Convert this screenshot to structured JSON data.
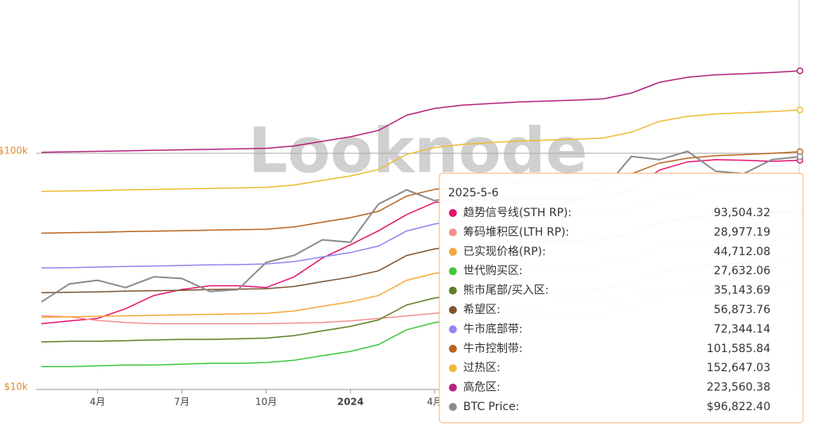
{
  "chart_data": {
    "type": "line",
    "watermark": "Looknode",
    "categories": [
      null,
      null,
      "4月",
      null,
      null,
      "7月",
      null,
      null,
      "10月",
      null,
      null,
      "2024",
      null,
      null,
      "4月",
      null,
      null,
      null,
      null,
      null,
      null,
      null,
      null,
      null,
      null,
      null,
      null,
      null
    ],
    "ylim": [
      10000,
      446000
    ],
    "yticks": [
      {
        "value": 10000,
        "label": "$10k"
      },
      {
        "value": 100000,
        "label": "$100k"
      }
    ],
    "log_scale": true,
    "grid": true,
    "series": [
      {
        "name": "趋势信号线(STH RP):",
        "color": "#e8116e",
        "values": [
          19000,
          19500,
          20000,
          22000,
          25000,
          26500,
          27500,
          27500,
          27000,
          30000,
          36000,
          41000,
          47000,
          55000,
          62000,
          63500,
          64000,
          64500,
          64000,
          64000,
          65000,
          70000,
          85000,
          92000,
          94000,
          93500,
          92500,
          93504.32
        ]
      },
      {
        "name": "筹码堆积区(LTH RP):",
        "color": "#f4908e",
        "values": [
          20500,
          20300,
          19600,
          19200,
          19000,
          19000,
          19000,
          19000,
          19000,
          19100,
          19200,
          19500,
          20000,
          20500,
          21000,
          21500,
          22000,
          22500,
          23000,
          23500,
          24000,
          25000,
          26000,
          27000,
          27500,
          28000,
          28500,
          28977.19
        ]
      },
      {
        "name": "已实现价格(RP):",
        "color": "#f5a93a",
        "values": [
          20200,
          20300,
          20400,
          20500,
          20600,
          20700,
          20800,
          20900,
          21000,
          21500,
          22500,
          23500,
          25000,
          29000,
          31000,
          32000,
          32500,
          33000,
          33300,
          33600,
          34000,
          36000,
          40000,
          42000,
          43000,
          43500,
          44000,
          44712.08
        ]
      },
      {
        "name": "世代购买区:",
        "color": "#3dc83d",
        "values": [
          12500,
          12500,
          12600,
          12700,
          12700,
          12800,
          12900,
          12900,
          13000,
          13300,
          13900,
          14500,
          15500,
          17900,
          19200,
          19800,
          20100,
          20400,
          20600,
          20800,
          21000,
          22200,
          24700,
          26000,
          26600,
          26900,
          27200,
          27632.06
        ]
      },
      {
        "name": "熊市尾部/买入区:",
        "color": "#5e7f24",
        "values": [
          15900,
          16000,
          16000,
          16100,
          16200,
          16300,
          16300,
          16400,
          16500,
          16900,
          17700,
          18500,
          19700,
          22800,
          24400,
          25200,
          25500,
          25900,
          26200,
          26400,
          26700,
          28300,
          31400,
          33000,
          33800,
          34200,
          34600,
          35143.69
        ]
      },
      {
        "name": "希望区:",
        "color": "#7b5433",
        "values": [
          25700,
          25800,
          25900,
          26100,
          26200,
          26300,
          26500,
          26600,
          26700,
          27300,
          28600,
          29900,
          31800,
          36900,
          39400,
          40700,
          41300,
          42000,
          42400,
          42700,
          43200,
          45800,
          50900,
          53400,
          54700,
          55300,
          56000,
          56873.76
        ]
      },
      {
        "name": "牛市底部带:",
        "color": "#8f86f2",
        "values": [
          32700,
          32800,
          33000,
          33200,
          33300,
          33500,
          33700,
          33800,
          34000,
          34800,
          36400,
          38000,
          40500,
          46900,
          50200,
          51800,
          52600,
          53400,
          53900,
          54400,
          55000,
          58200,
          64700,
          68000,
          69600,
          70400,
          71200,
          72344.14
        ]
      },
      {
        "name": "牛市控制带:",
        "color": "#b8661e",
        "values": [
          45900,
          46100,
          46300,
          46600,
          46800,
          47000,
          47300,
          47500,
          47700,
          48800,
          51100,
          53400,
          56800,
          65900,
          70400,
          72700,
          73800,
          75000,
          75700,
          76300,
          77200,
          81800,
          90900,
          95400,
          97700,
          98800,
          100000,
          101585.84
        ]
      },
      {
        "name": "过热区:",
        "color": "#edbb35",
        "values": [
          69000,
          69300,
          69600,
          70000,
          70300,
          70700,
          71000,
          71400,
          71700,
          73400,
          76800,
          80200,
          85400,
          99000,
          105800,
          109200,
          111000,
          112700,
          113700,
          114700,
          116100,
          122900,
          136600,
          143400,
          146800,
          148500,
          150200,
          152647.03
        ]
      },
      {
        "name": "高危区:",
        "color": "#b3237e",
        "values": [
          101000,
          101500,
          102000,
          102500,
          103000,
          103500,
          104000,
          104500,
          105000,
          107500,
          112500,
          117500,
          125000,
          145000,
          155000,
          160000,
          162500,
          165000,
          166500,
          168000,
          170000,
          180000,
          200000,
          210000,
          215000,
          217500,
          220000,
          223560.38
        ]
      },
      {
        "name": "BTC Price:",
        "color": "#8c8c8c",
        "values": [
          23500,
          28000,
          29000,
          27000,
          30000,
          29500,
          26000,
          26500,
          34500,
          37000,
          43000,
          42000,
          61000,
          70000,
          63000,
          67000,
          62000,
          66000,
          59000,
          63000,
          70000,
          97000,
          94000,
          102000,
          84000,
          82000,
          94000,
          96822.4
        ]
      }
    ],
    "tooltip": {
      "title": "2025-5-6",
      "values": [
        93504.32,
        28977.19,
        44712.08,
        27632.06,
        35143.69,
        56873.76,
        72344.14,
        101585.84,
        152647.03,
        223560.38,
        96822.4
      ],
      "value_labels": [
        "93,504.32",
        "28,977.19",
        "44,712.08",
        "27,632.06",
        "35,143.69",
        "56,873.76",
        "72,344.14",
        "101,585.84",
        "152,647.03",
        "223,560.38",
        "$96,822.40"
      ]
    }
  }
}
